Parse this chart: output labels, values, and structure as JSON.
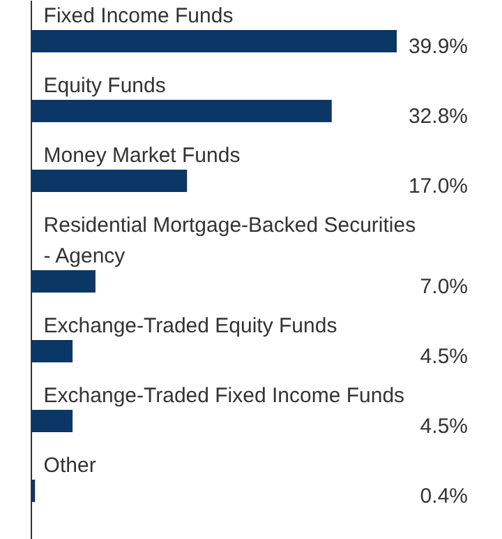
{
  "chart_data": {
    "type": "bar",
    "orientation": "horizontal",
    "color": "#0b3766",
    "categories": [
      "Fixed Income Funds",
      "Equity Funds",
      "Money Market Funds",
      "Residential Mortgage-Backed Securities - Agency",
      "Exchange-Traded Equity Funds",
      "Exchange-Traded Fixed Income Funds",
      "Other"
    ],
    "values": [
      39.9,
      32.8,
      17.0,
      7.0,
      4.5,
      4.5,
      0.4
    ],
    "value_labels": [
      "39.9%",
      "32.8%",
      "17.0%",
      "7.0%",
      "4.5%",
      "4.5%",
      "0.4%"
    ]
  }
}
